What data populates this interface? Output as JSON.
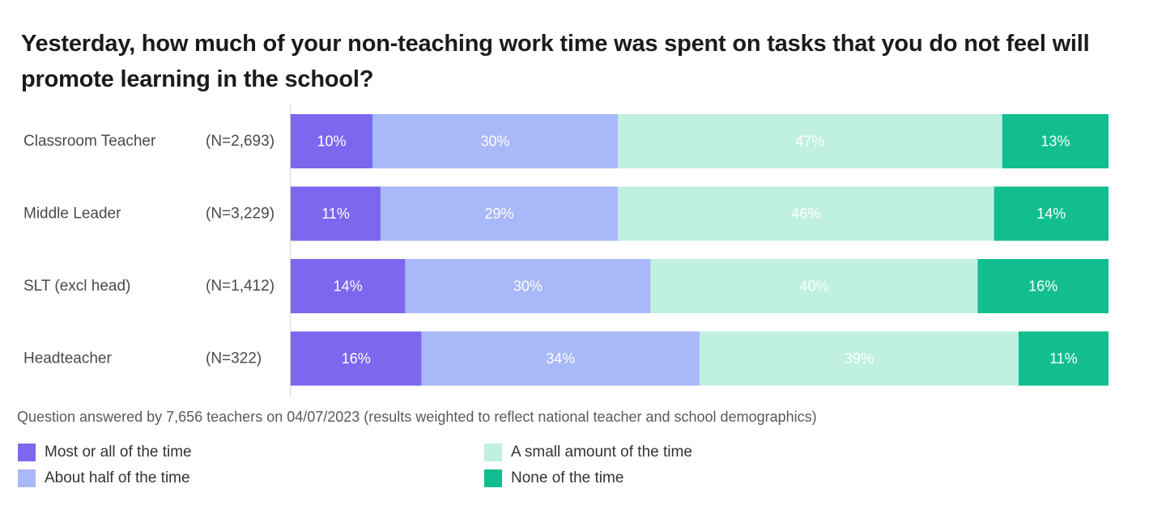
{
  "chart_data": {
    "type": "bar",
    "orientation": "horizontal",
    "stacked": true,
    "title": "Yesterday, how much of your non-teaching work time was spent on tasks that you do not feel will promote learning in the school?",
    "categories": [
      "Classroom Teacher",
      "Middle Leader",
      "SLT (excl head)",
      "Headteacher"
    ],
    "sample_sizes": [
      "(N=2,693)",
      "(N=3,229)",
      "(N=1,412)",
      "(N=322)"
    ],
    "unit": "%",
    "xlim": [
      0,
      100
    ],
    "grid": false,
    "legend_position": "bottom",
    "series": [
      {
        "name": "Most or all of the time",
        "color": "#7b68ee",
        "label_color": "#ffffff",
        "values": [
          10,
          11,
          14,
          16
        ]
      },
      {
        "name": "About half of the time",
        "color": "#a8b8f8",
        "label_color": "#ffffff",
        "values": [
          30,
          29,
          30,
          34
        ]
      },
      {
        "name": "A small amount of the time",
        "color": "#bff0e0",
        "label_color": "#ffffff",
        "values": [
          47,
          46,
          40,
          39
        ]
      },
      {
        "name": "None of the time",
        "color": "#12be8f",
        "label_color": "#ffffff",
        "values": [
          13,
          14,
          16,
          11
        ]
      }
    ]
  },
  "note": "Question answered by 7,656 teachers on 04/07/2023 (results weighted to reflect national teacher and school demographics)",
  "legend": [
    {
      "label": "Most or all of the time",
      "color": "#7b68ee"
    },
    {
      "label": "About half of the time",
      "color": "#a8b8f8"
    },
    {
      "label": "A small amount of the time",
      "color": "#bff0e0"
    },
    {
      "label": "None of the time",
      "color": "#12be8f"
    }
  ]
}
